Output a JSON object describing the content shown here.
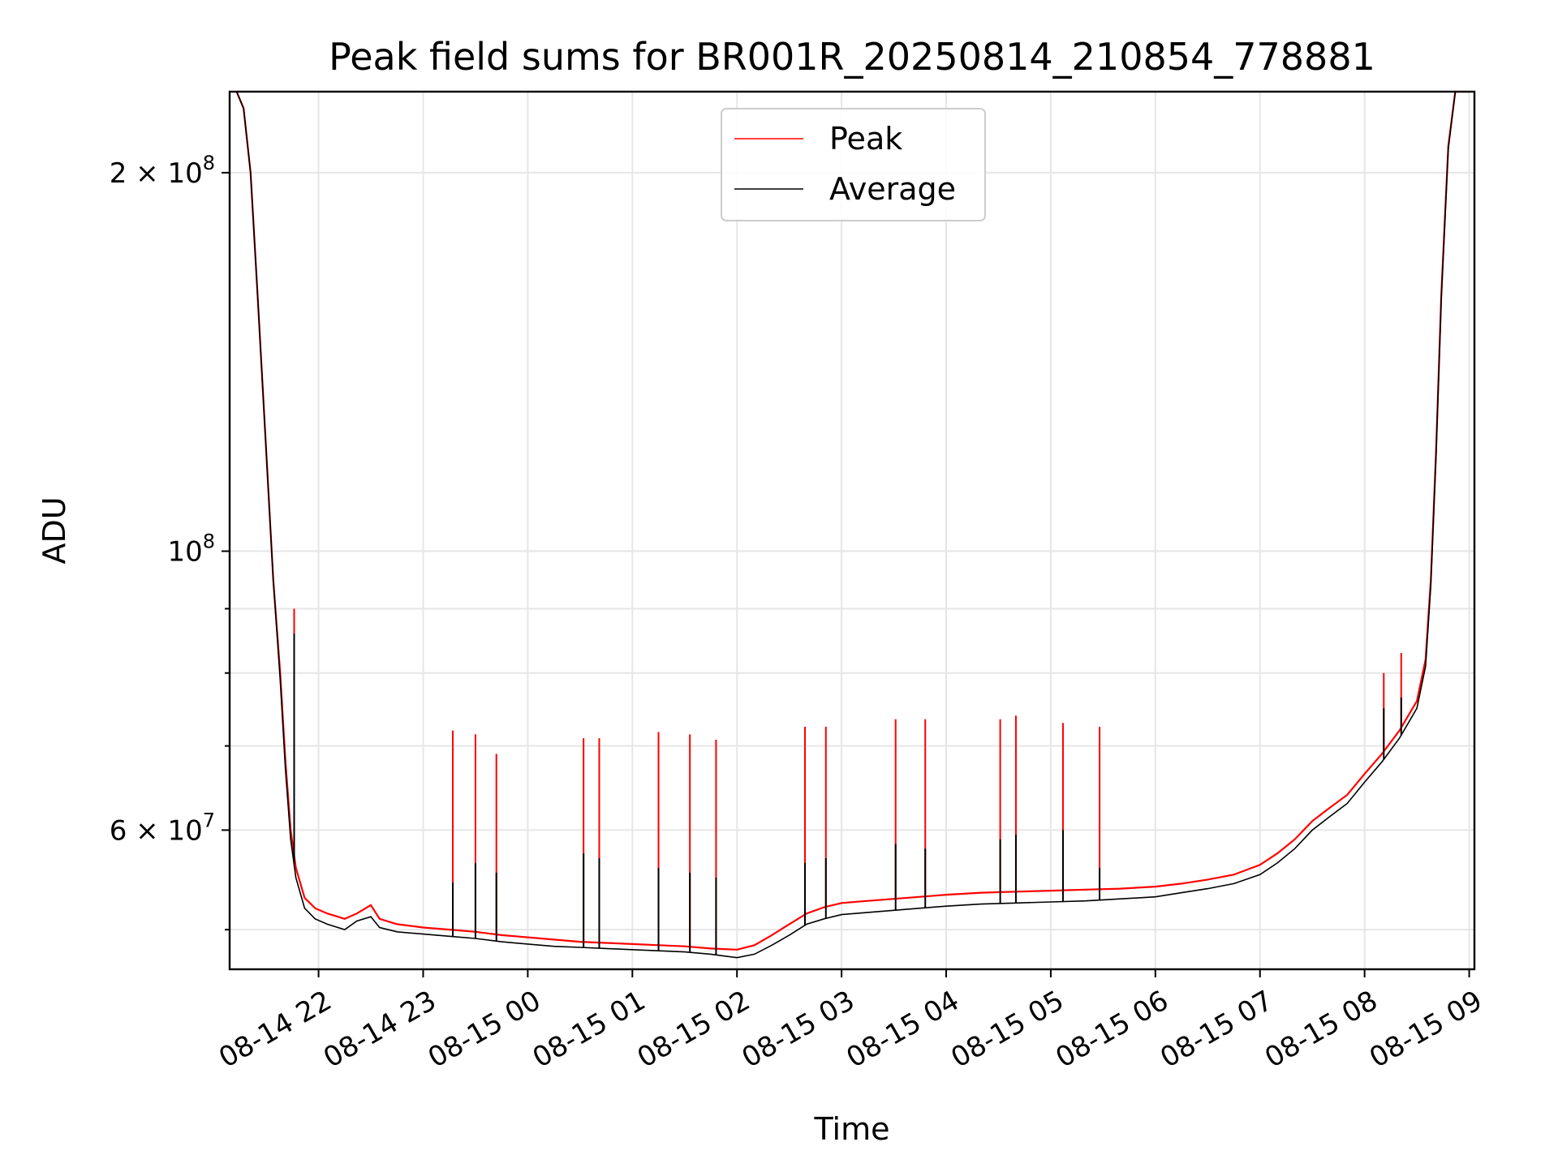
{
  "chart_data": {
    "type": "line",
    "title": "Peak field sums for BR001R_20250814_210854_778881",
    "xlabel": "Time",
    "ylabel": "ADU",
    "yscale": "log",
    "ylim": [
      46500000,
      232000000
    ],
    "xlim": [
      "2025-08-14 21:09",
      "2025-08-15 09:03"
    ],
    "grid": true,
    "legend_position": "upper center",
    "x_ticks": [
      {
        "value": "2025-08-14 22:00",
        "label": "08-14 22"
      },
      {
        "value": "2025-08-14 23:00",
        "label": "08-14 23"
      },
      {
        "value": "2025-08-15 00:00",
        "label": "08-15 00"
      },
      {
        "value": "2025-08-15 01:00",
        "label": "08-15 01"
      },
      {
        "value": "2025-08-15 02:00",
        "label": "08-15 02"
      },
      {
        "value": "2025-08-15 03:00",
        "label": "08-15 03"
      },
      {
        "value": "2025-08-15 04:00",
        "label": "08-15 04"
      },
      {
        "value": "2025-08-15 05:00",
        "label": "08-15 05"
      },
      {
        "value": "2025-08-15 06:00",
        "label": "08-15 06"
      },
      {
        "value": "2025-08-15 07:00",
        "label": "08-15 07"
      },
      {
        "value": "2025-08-15 08:00",
        "label": "08-15 08"
      },
      {
        "value": "2025-08-15 09:00",
        "label": "08-15 09"
      }
    ],
    "y_major_ticks": [
      {
        "value": 100000000,
        "base": "10",
        "exp": "8"
      },
      {
        "value": 60000000,
        "base": "6 × 10",
        "exp": "7"
      },
      {
        "value": 200000000,
        "base": "2 × 10",
        "exp": "8"
      }
    ],
    "y_minor_ticks": [
      50000000,
      70000000,
      80000000,
      90000000
    ],
    "series": [
      {
        "name": "Peak",
        "color": "#ff0000",
        "x": [
          "2025-08-14 21:09",
          "2025-08-14 21:13",
          "2025-08-14 21:17",
          "2025-08-14 21:21",
          "2025-08-14 21:25",
          "2025-08-14 21:30",
          "2025-08-14 21:34",
          "2025-08-14 21:38",
          "2025-08-14 21:41",
          "2025-08-14 21:44",
          "2025-08-14 21:47",
          "2025-08-14 21:52",
          "2025-08-14 21:58",
          "2025-08-14 22:05",
          "2025-08-14 22:15",
          "2025-08-14 22:22",
          "2025-08-14 22:30",
          "2025-08-14 22:35",
          "2025-08-14 22:45",
          "2025-08-14 23:00",
          "2025-08-14 23:15",
          "2025-08-14 23:30",
          "2025-08-14 23:45",
          "2025-08-15 00:00",
          "2025-08-15 00:15",
          "2025-08-15 00:30",
          "2025-08-15 00:45",
          "2025-08-15 01:00",
          "2025-08-15 01:15",
          "2025-08-15 01:30",
          "2025-08-15 01:45",
          "2025-08-15 02:00",
          "2025-08-15 02:10",
          "2025-08-15 02:20",
          "2025-08-15 02:30",
          "2025-08-15 02:40",
          "2025-08-15 02:50",
          "2025-08-15 03:00",
          "2025-08-15 03:15",
          "2025-08-15 03:30",
          "2025-08-15 03:45",
          "2025-08-15 04:00",
          "2025-08-15 04:20",
          "2025-08-15 04:40",
          "2025-08-15 05:00",
          "2025-08-15 05:20",
          "2025-08-15 05:40",
          "2025-08-15 06:00",
          "2025-08-15 06:15",
          "2025-08-15 06:30",
          "2025-08-15 06:45",
          "2025-08-15 07:00",
          "2025-08-15 07:10",
          "2025-08-15 07:20",
          "2025-08-15 07:30",
          "2025-08-15 07:40",
          "2025-08-15 07:50",
          "2025-08-15 08:00",
          "2025-08-15 08:10",
          "2025-08-15 08:20",
          "2025-08-15 08:30",
          "2025-08-15 08:35",
          "2025-08-15 08:38",
          "2025-08-15 08:41",
          "2025-08-15 08:44",
          "2025-08-15 08:48",
          "2025-08-15 08:52",
          "2025-08-15 08:56",
          "2025-08-15 09:00"
        ],
        "y": [
          232000000,
          232000000,
          225000000,
          200000000,
          160000000,
          120000000,
          95000000,
          80000000,
          68000000,
          60000000,
          56000000,
          53000000,
          52000000,
          51500000,
          51000000,
          51500000,
          52300000,
          51000000,
          50500000,
          50200000,
          50000000,
          49800000,
          49500000,
          49300000,
          49100000,
          48900000,
          48800000,
          48700000,
          48600000,
          48500000,
          48300000,
          48200000,
          48600000,
          49500000,
          50500000,
          51500000,
          52100000,
          52500000,
          52700000,
          52900000,
          53100000,
          53300000,
          53500000,
          53600000,
          53700000,
          53800000,
          53900000,
          54100000,
          54400000,
          54800000,
          55300000,
          56300000,
          57500000,
          59000000,
          61000000,
          62500000,
          64000000,
          66500000,
          69000000,
          72000000,
          76000000,
          82000000,
          95000000,
          120000000,
          160000000,
          210000000,
          232000000,
          232000000,
          232000000
        ]
      },
      {
        "name": "Average",
        "color": "#000000",
        "x": [
          "2025-08-14 21:09",
          "2025-08-14 21:13",
          "2025-08-14 21:17",
          "2025-08-14 21:21",
          "2025-08-14 21:25",
          "2025-08-14 21:30",
          "2025-08-14 21:34",
          "2025-08-14 21:38",
          "2025-08-14 21:41",
          "2025-08-14 21:44",
          "2025-08-14 21:47",
          "2025-08-14 21:52",
          "2025-08-14 21:58",
          "2025-08-14 22:05",
          "2025-08-14 22:15",
          "2025-08-14 22:22",
          "2025-08-14 22:30",
          "2025-08-14 22:35",
          "2025-08-14 22:45",
          "2025-08-14 23:00",
          "2025-08-14 23:15",
          "2025-08-14 23:30",
          "2025-08-14 23:45",
          "2025-08-15 00:00",
          "2025-08-15 00:15",
          "2025-08-15 00:30",
          "2025-08-15 00:45",
          "2025-08-15 01:00",
          "2025-08-15 01:15",
          "2025-08-15 01:30",
          "2025-08-15 01:45",
          "2025-08-15 02:00",
          "2025-08-15 02:10",
          "2025-08-15 02:20",
          "2025-08-15 02:30",
          "2025-08-15 02:40",
          "2025-08-15 02:50",
          "2025-08-15 03:00",
          "2025-08-15 03:15",
          "2025-08-15 03:30",
          "2025-08-15 03:45",
          "2025-08-15 04:00",
          "2025-08-15 04:20",
          "2025-08-15 04:40",
          "2025-08-15 05:00",
          "2025-08-15 05:20",
          "2025-08-15 05:40",
          "2025-08-15 06:00",
          "2025-08-15 06:15",
          "2025-08-15 06:30",
          "2025-08-15 06:45",
          "2025-08-15 07:00",
          "2025-08-15 07:10",
          "2025-08-15 07:20",
          "2025-08-15 07:30",
          "2025-08-15 07:40",
          "2025-08-15 07:50",
          "2025-08-15 08:00",
          "2025-08-15 08:10",
          "2025-08-15 08:20",
          "2025-08-15 08:30",
          "2025-08-15 08:35",
          "2025-08-15 08:38",
          "2025-08-15 08:41",
          "2025-08-15 08:44",
          "2025-08-15 08:48",
          "2025-08-15 08:52",
          "2025-08-15 08:56",
          "2025-08-15 09:00"
        ],
        "y": [
          232000000,
          232000000,
          225000000,
          200000000,
          160000000,
          120000000,
          95000000,
          79000000,
          67000000,
          59000000,
          55000000,
          52000000,
          51000000,
          50500000,
          50000000,
          50800000,
          51200000,
          50200000,
          49800000,
          49600000,
          49400000,
          49200000,
          48900000,
          48700000,
          48500000,
          48400000,
          48300000,
          48200000,
          48100000,
          48000000,
          47800000,
          47500000,
          47800000,
          48600000,
          49500000,
          50500000,
          51000000,
          51400000,
          51600000,
          51800000,
          52000000,
          52200000,
          52400000,
          52500000,
          52600000,
          52700000,
          52900000,
          53100000,
          53500000,
          53900000,
          54400000,
          55300000,
          56500000,
          58000000,
          60000000,
          61500000,
          63000000,
          65500000,
          68000000,
          71000000,
          75000000,
          81000000,
          94000000,
          119000000,
          159000000,
          209000000,
          232000000,
          232000000,
          232000000
        ]
      }
    ],
    "spikes": [
      {
        "time": "2025-08-14 21:46",
        "peak": 90000000,
        "average": 86000000
      },
      {
        "time": "2025-08-14 23:17",
        "peak": 72000000,
        "average": 54500000
      },
      {
        "time": "2025-08-14 23:30",
        "peak": 71500000,
        "average": 56500000
      },
      {
        "time": "2025-08-14 23:42",
        "peak": 69000000,
        "average": 55500000
      },
      {
        "time": "2025-08-15 00:32",
        "peak": 71000000,
        "average": 57500000
      },
      {
        "time": "2025-08-15 00:41",
        "peak": 71000000,
        "average": 57000000
      },
      {
        "time": "2025-08-15 01:15",
        "peak": 71800000,
        "average": 56000000
      },
      {
        "time": "2025-08-15 01:33",
        "peak": 71500000,
        "average": 55500000
      },
      {
        "time": "2025-08-15 01:48",
        "peak": 70800000,
        "average": 55000000
      },
      {
        "time": "2025-08-15 02:39",
        "peak": 72500000,
        "average": 56500000
      },
      {
        "time": "2025-08-15 02:51",
        "peak": 72500000,
        "average": 57000000
      },
      {
        "time": "2025-08-15 03:31",
        "peak": 73500000,
        "average": 58500000
      },
      {
        "time": "2025-08-15 03:48",
        "peak": 73500000,
        "average": 58000000
      },
      {
        "time": "2025-08-15 04:31",
        "peak": 73500000,
        "average": 59000000
      },
      {
        "time": "2025-08-15 04:40",
        "peak": 74000000,
        "average": 59500000
      },
      {
        "time": "2025-08-15 05:07",
        "peak": 73000000,
        "average": 60000000
      },
      {
        "time": "2025-08-15 05:28",
        "peak": 72500000,
        "average": 56000000
      },
      {
        "time": "2025-08-15 08:11",
        "peak": 80000000,
        "average": 75000000
      },
      {
        "time": "2025-08-15 08:21",
        "peak": 83000000,
        "average": 76500000
      }
    ]
  }
}
